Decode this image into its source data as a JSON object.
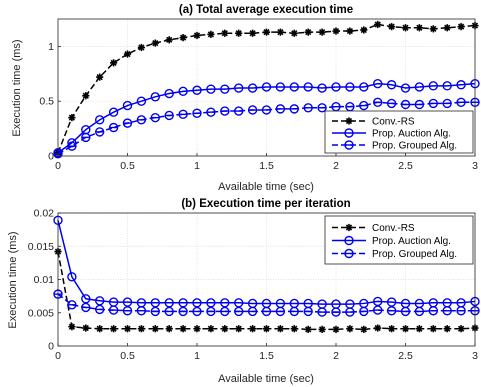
{
  "chart_data": [
    {
      "type": "line",
      "title": "(a) Total average execution time",
      "xlabel": "Available time (sec)",
      "ylabel": "Execution time (ms)",
      "xlim": [
        0,
        3
      ],
      "ylim": [
        0,
        1.25
      ],
      "xticks": [
        "0",
        "0.5",
        "1",
        "1.5",
        "2",
        "2.5",
        "3"
      ],
      "xtick_values": [
        0,
        0.5,
        1,
        1.5,
        2,
        2.5,
        3
      ],
      "yticks": [
        "0",
        "0.5",
        "1"
      ],
      "ytick_values": [
        0,
        0.5,
        1
      ],
      "grid": true,
      "legend_position": "bottom-right",
      "x": [
        0,
        0.1,
        0.2,
        0.3,
        0.4,
        0.5,
        0.6,
        0.7,
        0.8,
        0.9,
        1.0,
        1.1,
        1.2,
        1.3,
        1.4,
        1.5,
        1.6,
        1.7,
        1.8,
        1.9,
        2.0,
        2.1,
        2.2,
        2.3,
        2.4,
        2.5,
        2.6,
        2.7,
        2.8,
        2.9,
        3.0
      ],
      "series": [
        {
          "name": "Conv.-RS",
          "color": "#000000",
          "dash": "dashed",
          "marker": "star",
          "values": [
            0.03,
            0.35,
            0.55,
            0.72,
            0.85,
            0.93,
            0.99,
            1.03,
            1.06,
            1.08,
            1.1,
            1.11,
            1.12,
            1.12,
            1.12,
            1.13,
            1.13,
            1.12,
            1.13,
            1.13,
            1.14,
            1.14,
            1.15,
            1.2,
            1.18,
            1.17,
            1.17,
            1.16,
            1.17,
            1.18,
            1.19
          ]
        },
        {
          "name": "Prop. Auction Alg.",
          "color": "#0000ee",
          "dash": "solid",
          "marker": "circle",
          "values": [
            0.03,
            0.12,
            0.24,
            0.33,
            0.4,
            0.46,
            0.5,
            0.54,
            0.57,
            0.59,
            0.6,
            0.61,
            0.61,
            0.62,
            0.62,
            0.63,
            0.63,
            0.63,
            0.63,
            0.62,
            0.63,
            0.63,
            0.63,
            0.66,
            0.65,
            0.62,
            0.63,
            0.64,
            0.64,
            0.65,
            0.66
          ]
        },
        {
          "name": "Prop. Grouped Alg.",
          "color": "#0000ee",
          "dash": "dashed",
          "marker": "circle-bar",
          "values": [
            0.02,
            0.09,
            0.17,
            0.22,
            0.26,
            0.3,
            0.33,
            0.35,
            0.37,
            0.38,
            0.39,
            0.4,
            0.41,
            0.41,
            0.42,
            0.42,
            0.43,
            0.43,
            0.44,
            0.44,
            0.45,
            0.45,
            0.46,
            0.49,
            0.48,
            0.47,
            0.47,
            0.48,
            0.48,
            0.49,
            0.49
          ]
        }
      ]
    },
    {
      "type": "line",
      "title": "(b) Execution time per iteration",
      "xlabel": "Available time (sec)",
      "ylabel": "Execution time (ms)",
      "xlim": [
        0,
        3
      ],
      "ylim": [
        0,
        0.02
      ],
      "xticks": [
        "0",
        "0.5",
        "1",
        "1.5",
        "2",
        "2.5",
        "3"
      ],
      "xtick_values": [
        0,
        0.5,
        1,
        1.5,
        2,
        2.5,
        3
      ],
      "yticks": [
        "0",
        "0.005",
        "0.01",
        "0.015",
        "0.02"
      ],
      "ytick_values": [
        0,
        0.005,
        0.01,
        0.015,
        0.02
      ],
      "grid": true,
      "legend_position": "top-right",
      "x": [
        0,
        0.1,
        0.2,
        0.3,
        0.4,
        0.5,
        0.6,
        0.7,
        0.8,
        0.9,
        1.0,
        1.1,
        1.2,
        1.3,
        1.4,
        1.5,
        1.6,
        1.7,
        1.8,
        1.9,
        2.0,
        2.1,
        2.2,
        2.3,
        2.4,
        2.5,
        2.6,
        2.7,
        2.8,
        2.9,
        3.0
      ],
      "series": [
        {
          "name": "Conv.-RS",
          "color": "#000000",
          "dash": "dashed",
          "marker": "star",
          "values": [
            0.0142,
            0.0029,
            0.0027,
            0.0026,
            0.0026,
            0.0026,
            0.0026,
            0.0026,
            0.0026,
            0.0026,
            0.0026,
            0.0026,
            0.0026,
            0.0026,
            0.0026,
            0.0026,
            0.0026,
            0.0026,
            0.0025,
            0.0025,
            0.0025,
            0.0026,
            0.0025,
            0.0027,
            0.0026,
            0.0026,
            0.0026,
            0.0026,
            0.0026,
            0.0026,
            0.0027
          ]
        },
        {
          "name": "Prop. Auction Alg.",
          "color": "#0000ee",
          "dash": "solid",
          "marker": "circle",
          "values": [
            0.0189,
            0.0104,
            0.0071,
            0.0068,
            0.0066,
            0.0066,
            0.0065,
            0.0065,
            0.0065,
            0.0065,
            0.0065,
            0.0065,
            0.0065,
            0.0065,
            0.0064,
            0.0064,
            0.0064,
            0.0064,
            0.0064,
            0.0063,
            0.0063,
            0.0063,
            0.0064,
            0.0067,
            0.0066,
            0.0064,
            0.0064,
            0.0065,
            0.0065,
            0.0065,
            0.0067
          ]
        },
        {
          "name": "Prop. Grouped Alg.",
          "color": "#0000ee",
          "dash": "dashed",
          "marker": "circle-bar",
          "values": [
            0.0078,
            0.0062,
            0.0058,
            0.0055,
            0.0054,
            0.0053,
            0.0053,
            0.0052,
            0.0052,
            0.0052,
            0.0052,
            0.0052,
            0.0052,
            0.0052,
            0.0052,
            0.0052,
            0.0052,
            0.0052,
            0.0052,
            0.0051,
            0.0051,
            0.0051,
            0.0052,
            0.0054,
            0.0053,
            0.0052,
            0.0052,
            0.0053,
            0.0053,
            0.0053,
            0.0053
          ]
        }
      ]
    }
  ]
}
